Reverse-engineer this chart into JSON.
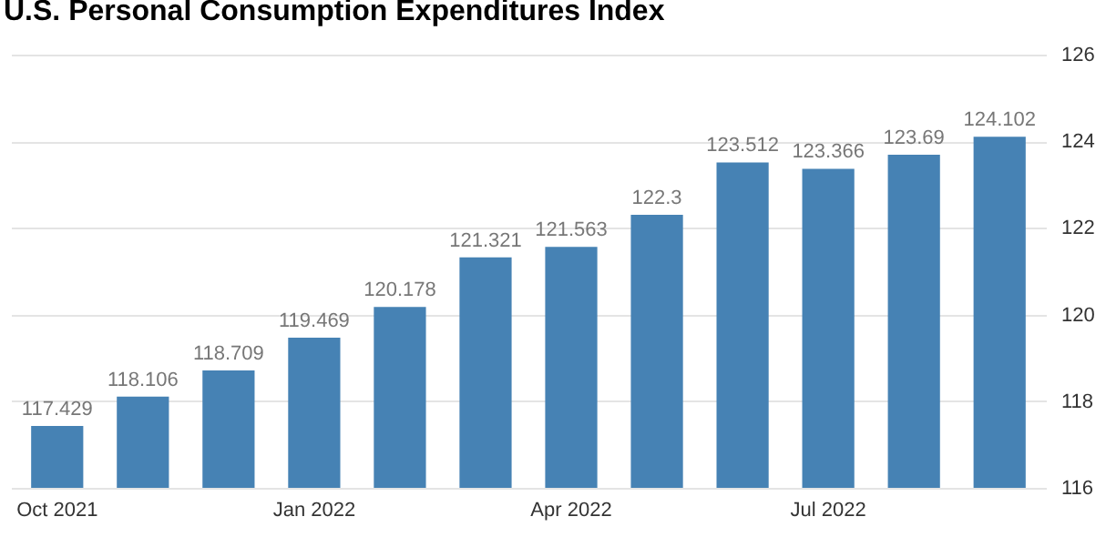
{
  "chart_data": {
    "type": "bar",
    "title": "U.S. Personal Consumption Expenditures Index",
    "categories": [
      "Oct 2021",
      null,
      null,
      "Jan 2022",
      null,
      null,
      "Apr 2022",
      null,
      null,
      "Jul 2022",
      null,
      null
    ],
    "values": [
      117.429,
      118.106,
      118.709,
      119.469,
      120.178,
      121.321,
      121.563,
      122.3,
      123.512,
      123.366,
      123.69,
      124.102
    ],
    "color": "#4682b4",
    "ylim": [
      116,
      126
    ],
    "yticks": [
      116,
      118,
      120,
      122,
      124,
      126
    ],
    "grid": "y",
    "data_labels": true
  }
}
